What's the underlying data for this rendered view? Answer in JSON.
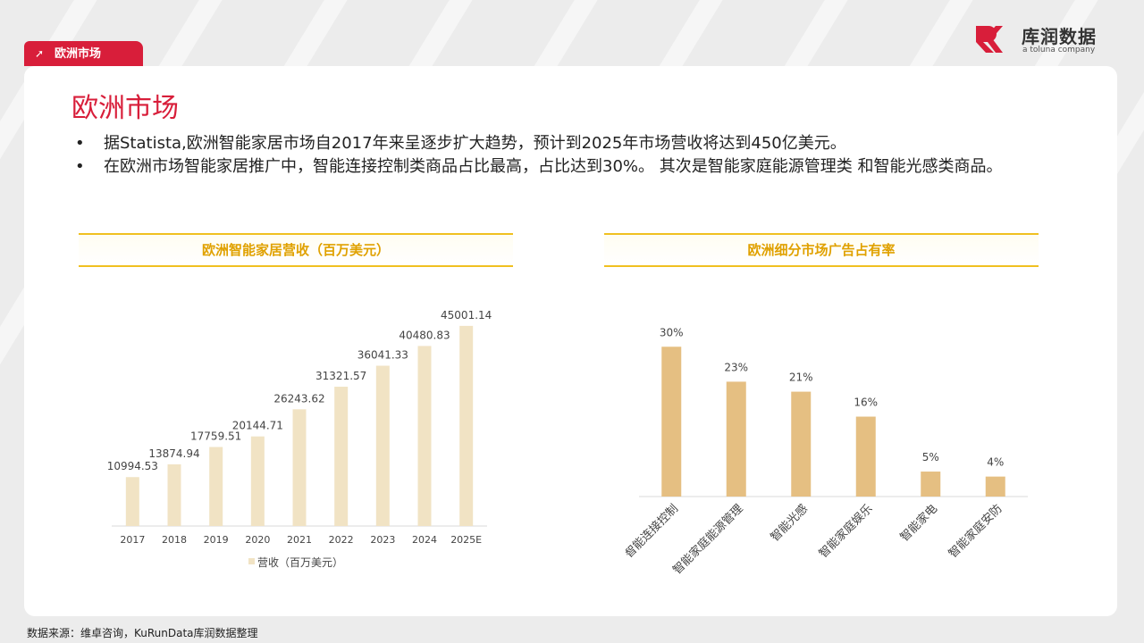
{
  "header": {
    "tab_label": "欧洲市场",
    "logo_name": "库润数据",
    "logo_sub": "a toluna company",
    "accent_color": "#d81e3a"
  },
  "main": {
    "title": "欧洲市场",
    "bullets": [
      "据Statista,欧洲智能家居市场自2017年来呈逐步扩大趋势，预计到2025年市场营收将达到450亿美元。",
      "在欧洲市场智能家居推广中，智能连接控制类商品占比最高，占比达到30%。 其次是智能家庭能源管理类 和智能光感类商品。"
    ],
    "left_panel_title": "欧洲智能家居营收（百万美元）",
    "right_panel_title": "欧洲细分市场广告占有率"
  },
  "chart_data": [
    {
      "type": "bar",
      "title": "欧洲智能家居营收（百万美元）",
      "categories": [
        "2017",
        "2018",
        "2019",
        "2020",
        "2021",
        "2022",
        "2023",
        "2024",
        "2025E"
      ],
      "series": [
        {
          "name": "营收（百万美元）",
          "values": [
            10994.53,
            13874.94,
            17759.51,
            20144.71,
            26243.62,
            31321.57,
            36041.33,
            40480.83,
            45001.14
          ]
        }
      ],
      "value_labels": [
        "10994.53",
        "13874.94",
        "17759.51",
        "20144.71",
        "26243.62",
        "31321.57",
        "36041.33",
        "40480.83",
        "45001.14"
      ],
      "legend": "bottom",
      "ylim": [
        0,
        50000
      ],
      "color": "#f1e3c4"
    },
    {
      "type": "bar",
      "title": "欧洲细分市场广告占有率",
      "categories": [
        "智能连接控制",
        "智能家庭能源管理",
        "智能光感",
        "智能家庭娱乐",
        "智能家电",
        "智能家庭安防"
      ],
      "values": [
        30,
        23,
        21,
        16,
        5,
        4
      ],
      "value_labels": [
        "30%",
        "23%",
        "21%",
        "16%",
        "5%",
        "4%"
      ],
      "ylim": [
        0,
        35
      ],
      "color": "#e5bf82"
    }
  ],
  "footer": {
    "source": "数据来源：维卓咨询，KuRunData库润数据整理"
  }
}
